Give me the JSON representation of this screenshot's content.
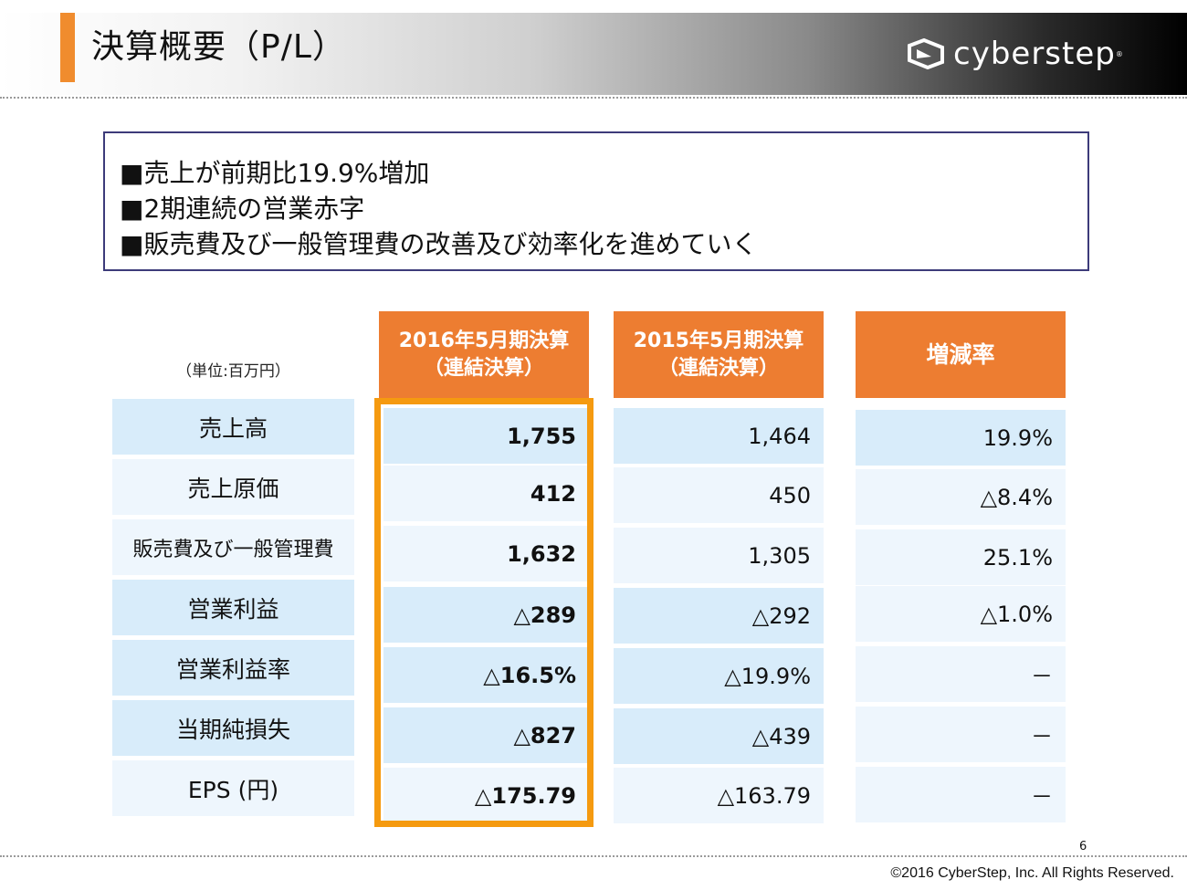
{
  "header": {
    "title": "決算概要（P/L）",
    "logo_text": "cyberstep",
    "logo_mark": "®"
  },
  "summary": {
    "lines": [
      "■売上が前期比19.9%増加",
      "■2期連続の営業赤字",
      "■販売費及び一般管理費の改善及び効率化を進めていく"
    ]
  },
  "table": {
    "unit": "（単位:百万円）",
    "columns": [
      {
        "line1": "2016年5月期決算",
        "line2": "（連結決算）"
      },
      {
        "line1": "2015年5月期決算",
        "line2": "（連結決算）"
      },
      {
        "line1": "増減率",
        "line2": ""
      }
    ],
    "rows": [
      {
        "label": "売上高",
        "fy2016": "1,755",
        "fy2015": "1,464",
        "change": "19.9%"
      },
      {
        "label": "売上原価",
        "fy2016": "412",
        "fy2015": "450",
        "change": "△8.4%"
      },
      {
        "label": "販売費及び一般管理費",
        "fy2016": "1,632",
        "fy2015": "1,305",
        "change": "25.1%"
      },
      {
        "label": "営業利益",
        "fy2016": "△289",
        "fy2015": "△292",
        "change": "△1.0%"
      },
      {
        "label": "営業利益率",
        "fy2016": "△16.5%",
        "fy2015": "△19.9%",
        "change": "－"
      },
      {
        "label": "当期純損失",
        "fy2016": "△827",
        "fy2015": "△439",
        "change": "－"
      },
      {
        "label": "EPS (円)",
        "fy2016": "△175.79",
        "fy2015": "△163.79",
        "change": "－"
      }
    ]
  },
  "footer": {
    "page_number": "6",
    "copyright": "©2016 CyberStep, Inc. All Rights Reserved."
  },
  "colors": {
    "accent_orange": "#ed7d31",
    "highlight_orange": "#f59a10",
    "cell_blue": "#d8ecfa",
    "cell_light": "#eef6fd",
    "summary_border": "#3d3b7a"
  }
}
